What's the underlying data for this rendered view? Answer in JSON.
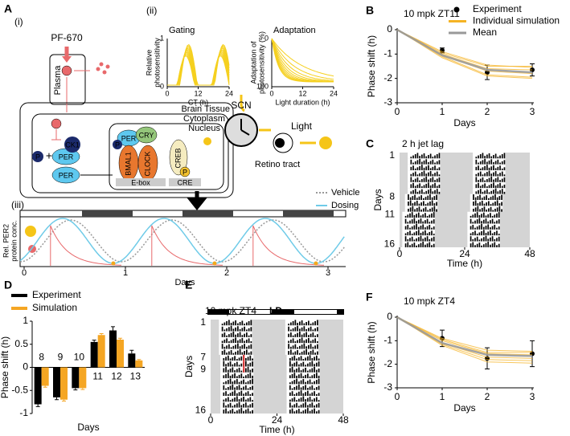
{
  "panel_labels": [
    "A",
    "B",
    "C",
    "D",
    "E",
    "F"
  ],
  "diagram": {
    "sub_labels": [
      "(i)",
      "(ii)",
      "(iii)"
    ],
    "drug": "PF-670",
    "compartments": [
      "Plasma",
      "Brain Tissue",
      "Cytoplasm",
      "Nucleus"
    ],
    "molecules": {
      "ck1": "CK1",
      "p": "P",
      "plus": "+",
      "per": "PER",
      "cry": "CRY",
      "bmal1": "BMAL1",
      "clock": "CLOCK",
      "creb": "CREB",
      "ebox": "E-box",
      "cre": "CRE"
    },
    "scn": "SCN",
    "light": "Light",
    "retino": "Retino tract",
    "gating": {
      "title": "Gating",
      "ylabel_lines": [
        "Relative",
        "photosensitivity"
      ],
      "xlabel": "CT (h)",
      "xticks": [
        0,
        12,
        24
      ],
      "yticks": [
        0,
        1
      ]
    },
    "adaptation": {
      "title": "Adaptation",
      "ylabel_lines": [
        "Adaptation of",
        "photosensitivity (%)"
      ],
      "xlabel": "Light duration (h)",
      "xticks": [
        0,
        12,
        24
      ],
      "yticks": [
        0,
        100
      ]
    },
    "per2": {
      "legend": [
        "Vehicle",
        "Dosing"
      ],
      "ylabel_lines": [
        "Rel. PER2",
        "protein conc."
      ],
      "xlabel": "Days",
      "xticks": [
        0,
        1,
        2,
        3
      ]
    }
  },
  "actograms": [
    {
      "title": "2 h jet lag",
      "ylabel": "Days",
      "yticks": [
        1,
        8,
        11,
        16
      ],
      "xticks": [
        0,
        24,
        48
      ],
      "xlabel": "Time (h)"
    },
    {
      "title": "10 mpk ZT4",
      "lighting": "LD",
      "ylabel": "Days",
      "yticks": [
        1,
        7,
        9,
        16
      ],
      "xticks": [
        0,
        24,
        48
      ],
      "xlabel": "Time (h)"
    }
  ],
  "chart_data": [
    {
      "type": "line",
      "title": "10 mpk ZT11",
      "x": [
        0,
        1,
        2,
        3
      ],
      "xlabel": "Days",
      "ylabel": "Phase shift (h)",
      "xlim": [
        0,
        3
      ],
      "ylim": [
        -3,
        0
      ],
      "xticks": [
        0,
        1,
        2,
        3
      ],
      "yticks": [
        0,
        -1,
        -2,
        -3
      ],
      "series": [
        {
          "name": "Experiment",
          "color": "#000000",
          "values": [
            null,
            -0.85,
            -1.75,
            -1.65
          ],
          "errors": [
            null,
            0.1,
            0.3,
            0.25
          ]
        },
        {
          "name": "Individual simulation",
          "color": "#f5b324",
          "runs": [
            [
              0,
              -0.95,
              -1.5,
              -1.5
            ],
            [
              0,
              -1.0,
              -1.6,
              -1.65
            ],
            [
              0,
              -1.05,
              -1.7,
              -1.8
            ],
            [
              0,
              -1.1,
              -1.85,
              -1.95
            ],
            [
              0,
              -0.9,
              -1.45,
              -1.55
            ],
            [
              0,
              -1.15,
              -1.9,
              -2.0
            ]
          ]
        },
        {
          "name": "Mean",
          "color": "#999999",
          "values": [
            0,
            -1.05,
            -1.65,
            -1.75
          ]
        }
      ]
    },
    {
      "type": "bar",
      "categories": [
        "8",
        "9",
        "10",
        "11",
        "12",
        "13"
      ],
      "xlabel": "Days",
      "ylabel": "Phase shift (h)",
      "ylim": [
        -1,
        1
      ],
      "yticks": [
        -1,
        -0.5,
        0,
        0.5,
        1
      ],
      "series": [
        {
          "name": "Experiment",
          "color": "#000000",
          "values": [
            -0.8,
            -0.65,
            -0.45,
            0.55,
            0.8,
            0.3
          ],
          "errors": [
            0.05,
            0.05,
            0.04,
            0.04,
            0.08,
            0.07
          ]
        },
        {
          "name": "Simulation",
          "color": "#f5a623",
          "values": [
            -0.4,
            -0.7,
            -0.45,
            0.7,
            0.6,
            0.15
          ],
          "errors": [
            0.03,
            0.03,
            0.03,
            0.03,
            0.03,
            0.02
          ]
        }
      ]
    },
    {
      "type": "line",
      "title": "10 mpk ZT4",
      "x": [
        0,
        1,
        2,
        3
      ],
      "xlabel": "Days",
      "ylabel": "Phase shift (h)",
      "xlim": [
        0,
        3
      ],
      "ylim": [
        -3,
        0
      ],
      "xticks": [
        0,
        1,
        2,
        3
      ],
      "yticks": [
        0,
        -1,
        -2,
        -3
      ],
      "series": [
        {
          "color": "#000000",
          "values": [
            null,
            -0.9,
            -1.75,
            -1.55
          ],
          "errors": [
            null,
            0.35,
            0.45,
            0.55
          ]
        },
        {
          "color": "#f5b324",
          "runs": [
            [
              0,
              -0.9,
              -1.4,
              -1.45
            ],
            [
              0,
              -1.0,
              -1.55,
              -1.6
            ],
            [
              0,
              -1.1,
              -1.7,
              -1.75
            ],
            [
              0,
              -1.2,
              -1.9,
              -1.95
            ],
            [
              0,
              -0.95,
              -1.5,
              -1.5
            ],
            [
              0,
              -1.15,
              -1.8,
              -1.85
            ]
          ]
        },
        {
          "color": "#999999",
          "values": [
            0,
            -1.1,
            -1.6,
            -1.65
          ]
        }
      ]
    }
  ]
}
